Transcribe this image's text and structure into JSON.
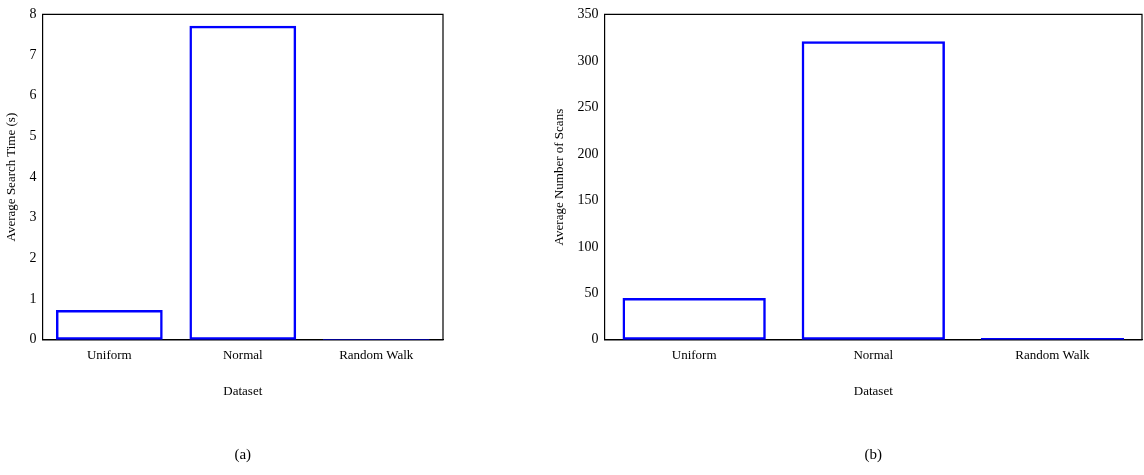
{
  "chart_data": [
    {
      "type": "bar",
      "categories": [
        "Uniform",
        "Normal",
        "Random Walk"
      ],
      "series": [
        {
          "color": "#0000ff",
          "values": [
            0.73,
            7.72,
            0.02
          ]
        }
      ],
      "xlabel": "Dataset",
      "ylabel": "Average Search Time (s)",
      "ylim": [
        0,
        8
      ],
      "yticks": [
        0,
        1,
        2,
        3,
        4,
        5,
        6,
        7,
        8
      ],
      "grid": false,
      "legend": false,
      "annotations": [
        "(a)"
      ]
    },
    {
      "type": "bar",
      "categories": [
        "Uniform",
        "Normal",
        "Random Walk"
      ],
      "series": [
        {
          "color": "#0000ff",
          "values": [
            45,
            321,
            2
          ]
        }
      ],
      "xlabel": "Dataset",
      "ylabel": "Average Number of Scans",
      "ylim": [
        0,
        350
      ],
      "yticks": [
        0,
        50,
        100,
        150,
        200,
        250,
        300,
        350
      ],
      "grid": false,
      "legend": false,
      "annotations": [
        "(b)"
      ]
    }
  ]
}
